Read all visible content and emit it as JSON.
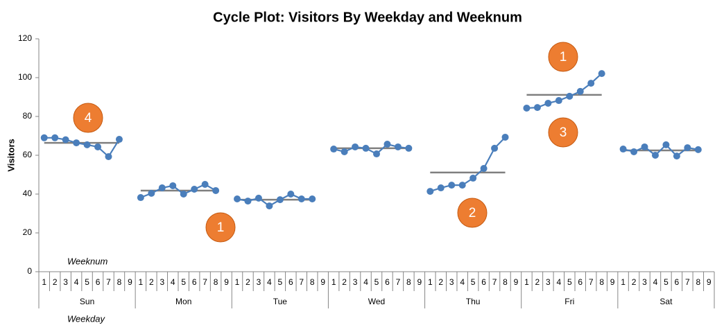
{
  "chart_data": {
    "type": "line",
    "title": "Cycle Plot: Visitors By Weekday and Weeknum",
    "y_label": "Visitors",
    "inner_axis_label": "Weeknum",
    "outer_axis_label": "Weekday",
    "weeks": [
      "1",
      "2",
      "3",
      "4",
      "5",
      "6",
      "7",
      "8",
      "9"
    ],
    "ylim": [
      0,
      120
    ],
    "yticks": [
      0,
      20,
      40,
      60,
      80,
      100,
      120
    ],
    "color": "#4a7ebb",
    "average_color": "#7f7f7f",
    "series": [
      {
        "name": "Sun",
        "values": [
          69,
          69,
          68,
          66.4,
          65.4,
          64.3,
          59.3,
          68.2,
          null
        ],
        "average": 66.4
      },
      {
        "name": "Mon",
        "values": [
          38.2,
          40.4,
          43.2,
          44.3,
          40,
          42.5,
          45,
          41.8,
          null
        ],
        "average": 41.8
      },
      {
        "name": "Tue",
        "values": [
          37.5,
          36.4,
          37.9,
          33.9,
          37.1,
          40,
          37.5,
          37.5,
          null
        ],
        "average": 37.1
      },
      {
        "name": "Wed",
        "values": [
          63.2,
          61.8,
          64.3,
          63.6,
          60.7,
          65.7,
          64.3,
          63.6,
          null
        ],
        "average": 63.6
      },
      {
        "name": "Thu",
        "values": [
          41.4,
          43.2,
          44.6,
          44.6,
          48.2,
          53.2,
          63.6,
          69.3,
          null
        ],
        "average": 51.1
      },
      {
        "name": "Fri",
        "values": [
          84.3,
          84.6,
          86.8,
          88.2,
          90.4,
          92.9,
          97.1,
          102.1,
          null
        ],
        "average": 91.1
      },
      {
        "name": "Sat",
        "values": [
          63.2,
          61.8,
          64.3,
          60,
          65.4,
          59.6,
          63.9,
          62.9,
          null
        ],
        "average": 62.5
      }
    ],
    "annotations": [
      "4",
      "1",
      "2",
      "1",
      "3"
    ],
    "annotation_color": "#ed7d31"
  }
}
